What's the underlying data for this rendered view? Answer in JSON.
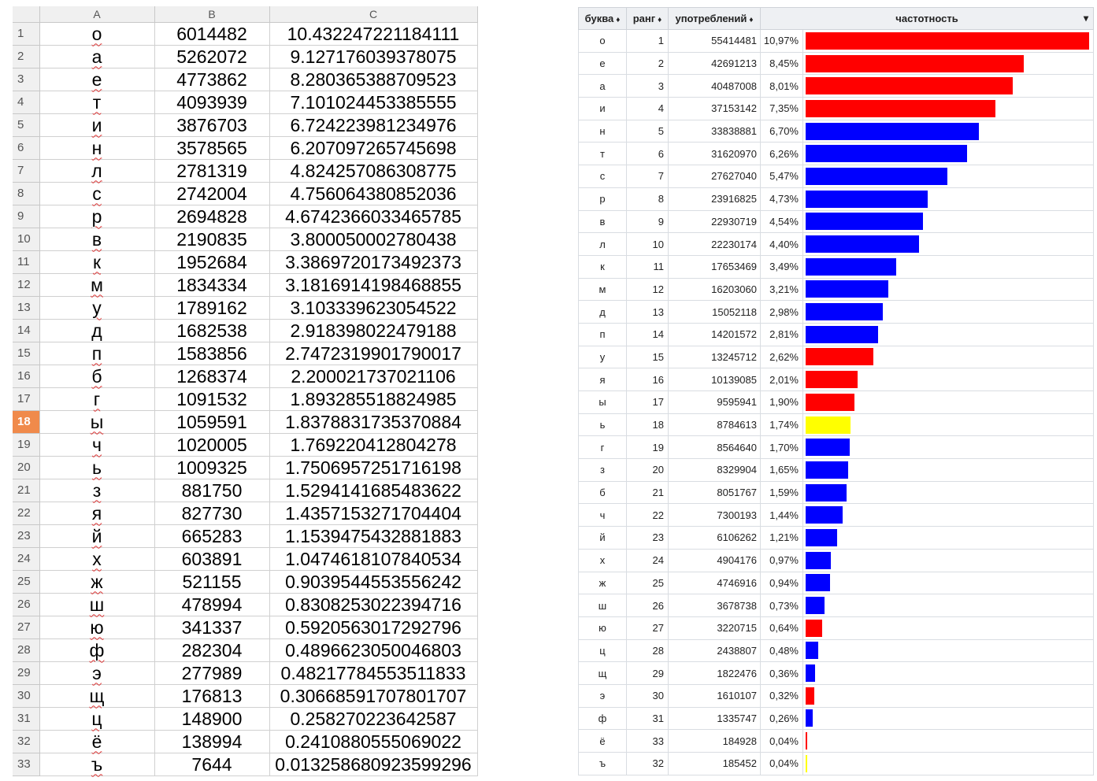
{
  "spreadsheet": {
    "columns": [
      "A",
      "B",
      "C"
    ],
    "selected_row": 18,
    "rows": [
      {
        "n": 1,
        "letter": "о",
        "count": "6014482",
        "percent": "10.432247221184111"
      },
      {
        "n": 2,
        "letter": "а",
        "count": "5262072",
        "percent": "9.127176039378075"
      },
      {
        "n": 3,
        "letter": "е",
        "count": "4773862",
        "percent": "8.280365388709523"
      },
      {
        "n": 4,
        "letter": "т",
        "count": "4093939",
        "percent": "7.101024453385555"
      },
      {
        "n": 5,
        "letter": "и",
        "count": "3876703",
        "percent": "6.724223981234976"
      },
      {
        "n": 6,
        "letter": "н",
        "count": "3578565",
        "percent": "6.207097265745698"
      },
      {
        "n": 7,
        "letter": "л",
        "count": "2781319",
        "percent": "4.824257086308775"
      },
      {
        "n": 8,
        "letter": "с",
        "count": "2742004",
        "percent": "4.756064380852036"
      },
      {
        "n": 9,
        "letter": "р",
        "count": "2694828",
        "percent": "4.6742366033465785"
      },
      {
        "n": 10,
        "letter": "в",
        "count": "2190835",
        "percent": "3.800050002780438"
      },
      {
        "n": 11,
        "letter": "к",
        "count": "1952684",
        "percent": "3.3869720173492373"
      },
      {
        "n": 12,
        "letter": "м",
        "count": "1834334",
        "percent": "3.1816914198468855"
      },
      {
        "n": 13,
        "letter": "у",
        "count": "1789162",
        "percent": "3.103339623054522"
      },
      {
        "n": 14,
        "letter": "д",
        "count": "1682538",
        "percent": "2.918398022479188"
      },
      {
        "n": 15,
        "letter": "п",
        "count": "1583856",
        "percent": "2.7472319901790017"
      },
      {
        "n": 16,
        "letter": "б",
        "count": "1268374",
        "percent": "2.200021737021106"
      },
      {
        "n": 17,
        "letter": "г",
        "count": "1091532",
        "percent": "1.893285518824985"
      },
      {
        "n": 18,
        "letter": "ы",
        "count": "1059591",
        "percent": "1.8378831735370884"
      },
      {
        "n": 19,
        "letter": "ч",
        "count": "1020005",
        "percent": "1.769220412804278"
      },
      {
        "n": 20,
        "letter": "ь",
        "count": "1009325",
        "percent": "1.7506957251716198"
      },
      {
        "n": 21,
        "letter": "з",
        "count": "881750",
        "percent": "1.5294141685483622"
      },
      {
        "n": 22,
        "letter": "я",
        "count": "827730",
        "percent": "1.4357153271704404"
      },
      {
        "n": 23,
        "letter": "й",
        "count": "665283",
        "percent": "1.1539475432881883"
      },
      {
        "n": 24,
        "letter": "х",
        "count": "603891",
        "percent": "1.0474618107840534"
      },
      {
        "n": 25,
        "letter": "ж",
        "count": "521155",
        "percent": "0.9039544553556242"
      },
      {
        "n": 26,
        "letter": "ш",
        "count": "478994",
        "percent": "0.8308253022394716"
      },
      {
        "n": 27,
        "letter": "ю",
        "count": "341337",
        "percent": "0.5920563017292796"
      },
      {
        "n": 28,
        "letter": "ф",
        "count": "282304",
        "percent": "0.4896623050046803"
      },
      {
        "n": 29,
        "letter": "э",
        "count": "277989",
        "percent": "0.48217784553511833"
      },
      {
        "n": 30,
        "letter": "щ",
        "count": "176813",
        "percent": "0.30668591707801707"
      },
      {
        "n": 31,
        "letter": "ц",
        "count": "148900",
        "percent": "0.258270223642587"
      },
      {
        "n": 32,
        "letter": "ё",
        "count": "138994",
        "percent": "0.2410880555069022"
      },
      {
        "n": 33,
        "letter": "ъ",
        "count": "7644",
        "percent": "0.013258680923599296"
      }
    ]
  },
  "frequency_table": {
    "headers": {
      "letter": "буква",
      "rank": "ранг",
      "uses": "употреблений",
      "freq": "частотность",
      "sort_arrow": "♦",
      "dropdown_arrow": "▾"
    },
    "colors": {
      "vowel": "#ff0000",
      "consonant": "#0000ff",
      "other": "#ffff00"
    },
    "max_fraction": 0.1097,
    "rows": [
      {
        "letter": "о",
        "rank": "1",
        "uses": "55414481",
        "freq": "10,97%",
        "fraction": 0.1097,
        "kind": "vowel"
      },
      {
        "letter": "е",
        "rank": "2",
        "uses": "42691213",
        "freq": "8,45%",
        "fraction": 0.0845,
        "kind": "vowel"
      },
      {
        "letter": "а",
        "rank": "3",
        "uses": "40487008",
        "freq": "8,01%",
        "fraction": 0.0801,
        "kind": "vowel"
      },
      {
        "letter": "и",
        "rank": "4",
        "uses": "37153142",
        "freq": "7,35%",
        "fraction": 0.0735,
        "kind": "vowel"
      },
      {
        "letter": "н",
        "rank": "5",
        "uses": "33838881",
        "freq": "6,70%",
        "fraction": 0.067,
        "kind": "consonant"
      },
      {
        "letter": "т",
        "rank": "6",
        "uses": "31620970",
        "freq": "6,26%",
        "fraction": 0.0626,
        "kind": "consonant"
      },
      {
        "letter": "с",
        "rank": "7",
        "uses": "27627040",
        "freq": "5,47%",
        "fraction": 0.0547,
        "kind": "consonant"
      },
      {
        "letter": "р",
        "rank": "8",
        "uses": "23916825",
        "freq": "4,73%",
        "fraction": 0.0473,
        "kind": "consonant"
      },
      {
        "letter": "в",
        "rank": "9",
        "uses": "22930719",
        "freq": "4,54%",
        "fraction": 0.0454,
        "kind": "consonant"
      },
      {
        "letter": "л",
        "rank": "10",
        "uses": "22230174",
        "freq": "4,40%",
        "fraction": 0.044,
        "kind": "consonant"
      },
      {
        "letter": "к",
        "rank": "11",
        "uses": "17653469",
        "freq": "3,49%",
        "fraction": 0.0349,
        "kind": "consonant"
      },
      {
        "letter": "м",
        "rank": "12",
        "uses": "16203060",
        "freq": "3,21%",
        "fraction": 0.0321,
        "kind": "consonant"
      },
      {
        "letter": "д",
        "rank": "13",
        "uses": "15052118",
        "freq": "2,98%",
        "fraction": 0.0298,
        "kind": "consonant"
      },
      {
        "letter": "п",
        "rank": "14",
        "uses": "14201572",
        "freq": "2,81%",
        "fraction": 0.0281,
        "kind": "consonant"
      },
      {
        "letter": "у",
        "rank": "15",
        "uses": "13245712",
        "freq": "2,62%",
        "fraction": 0.0262,
        "kind": "vowel"
      },
      {
        "letter": "я",
        "rank": "16",
        "uses": "10139085",
        "freq": "2,01%",
        "fraction": 0.0201,
        "kind": "vowel"
      },
      {
        "letter": "ы",
        "rank": "17",
        "uses": "9595941",
        "freq": "1,90%",
        "fraction": 0.019,
        "kind": "vowel"
      },
      {
        "letter": "ь",
        "rank": "18",
        "uses": "8784613",
        "freq": "1,74%",
        "fraction": 0.0174,
        "kind": "other"
      },
      {
        "letter": "г",
        "rank": "19",
        "uses": "8564640",
        "freq": "1,70%",
        "fraction": 0.017,
        "kind": "consonant"
      },
      {
        "letter": "з",
        "rank": "20",
        "uses": "8329904",
        "freq": "1,65%",
        "fraction": 0.0165,
        "kind": "consonant"
      },
      {
        "letter": "б",
        "rank": "21",
        "uses": "8051767",
        "freq": "1,59%",
        "fraction": 0.0159,
        "kind": "consonant"
      },
      {
        "letter": "ч",
        "rank": "22",
        "uses": "7300193",
        "freq": "1,44%",
        "fraction": 0.0144,
        "kind": "consonant"
      },
      {
        "letter": "й",
        "rank": "23",
        "uses": "6106262",
        "freq": "1,21%",
        "fraction": 0.0121,
        "kind": "consonant"
      },
      {
        "letter": "х",
        "rank": "24",
        "uses": "4904176",
        "freq": "0,97%",
        "fraction": 0.0097,
        "kind": "consonant"
      },
      {
        "letter": "ж",
        "rank": "25",
        "uses": "4746916",
        "freq": "0,94%",
        "fraction": 0.0094,
        "kind": "consonant"
      },
      {
        "letter": "ш",
        "rank": "26",
        "uses": "3678738",
        "freq": "0,73%",
        "fraction": 0.0073,
        "kind": "consonant"
      },
      {
        "letter": "ю",
        "rank": "27",
        "uses": "3220715",
        "freq": "0,64%",
        "fraction": 0.0064,
        "kind": "vowel"
      },
      {
        "letter": "ц",
        "rank": "28",
        "uses": "2438807",
        "freq": "0,48%",
        "fraction": 0.0048,
        "kind": "consonant"
      },
      {
        "letter": "щ",
        "rank": "29",
        "uses": "1822476",
        "freq": "0,36%",
        "fraction": 0.0036,
        "kind": "consonant"
      },
      {
        "letter": "э",
        "rank": "30",
        "uses": "1610107",
        "freq": "0,32%",
        "fraction": 0.0032,
        "kind": "vowel"
      },
      {
        "letter": "ф",
        "rank": "31",
        "uses": "1335747",
        "freq": "0,26%",
        "fraction": 0.0026,
        "kind": "consonant"
      },
      {
        "letter": "ё",
        "rank": "33",
        "uses": "184928",
        "freq": "0,04%",
        "fraction": 0.0004,
        "kind": "vowel"
      },
      {
        "letter": "ъ",
        "rank": "32",
        "uses": "185452",
        "freq": "0,04%",
        "fraction": 0.0004,
        "kind": "other"
      }
    ]
  }
}
